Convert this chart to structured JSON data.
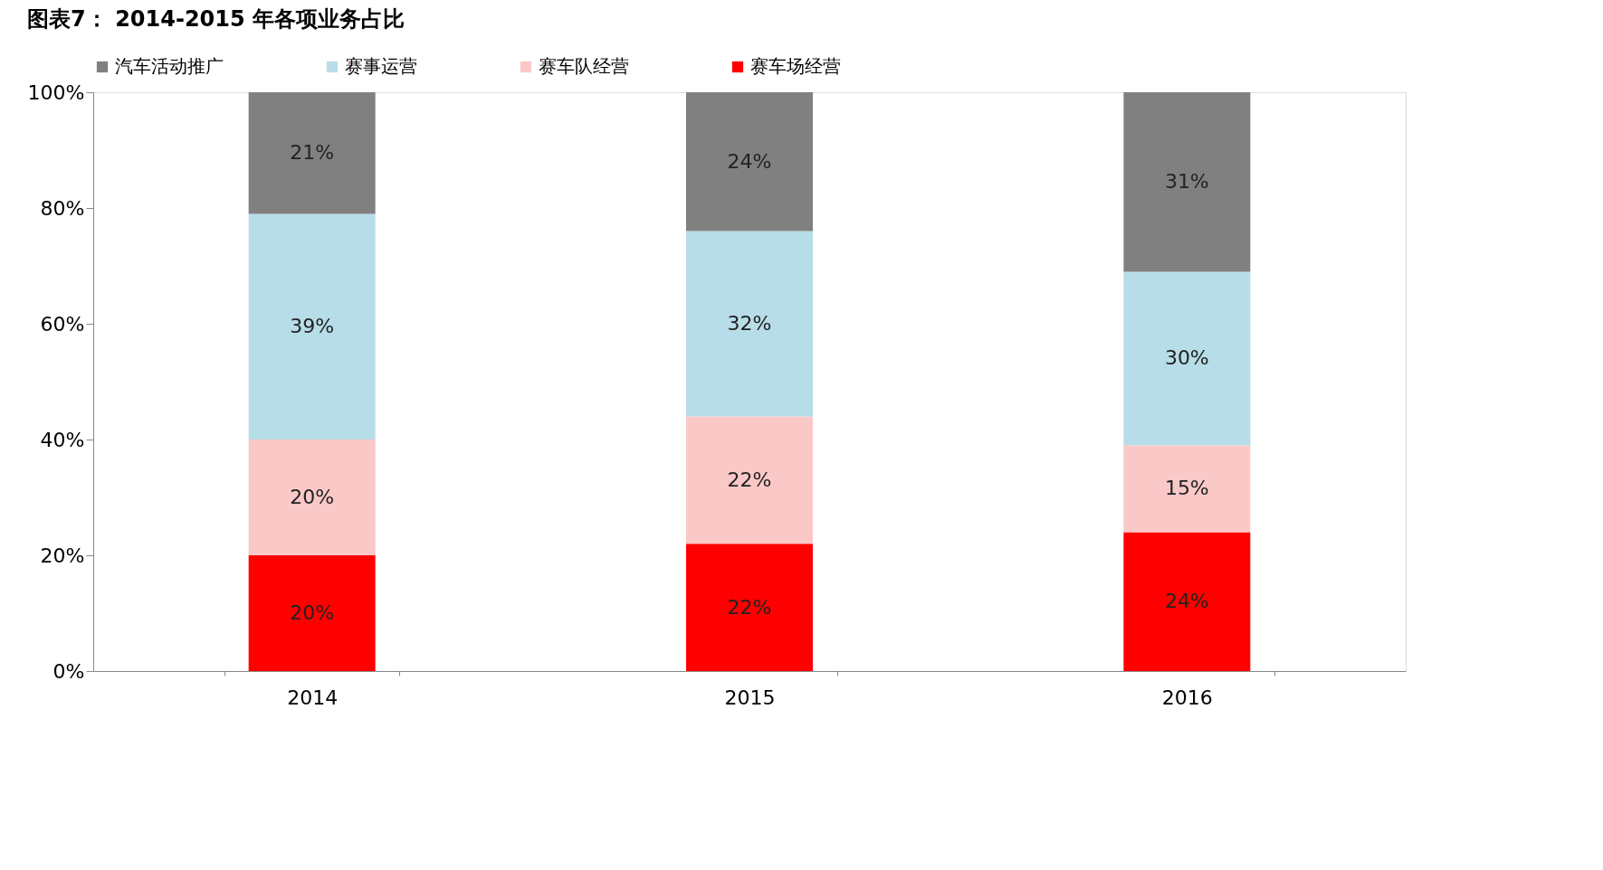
{
  "chart_data": {
    "type": "bar",
    "title": "图表7：  2014-2015 年各项业务占比",
    "categories": [
      "2014",
      "2015",
      "2016"
    ],
    "stacked": true,
    "series": [
      {
        "name": "赛车场经营",
        "color": "#ff0000",
        "values": [
          20,
          22,
          24
        ],
        "value_labels": [
          "20%",
          "22%",
          "24%"
        ]
      },
      {
        "name": "赛车队经营",
        "color": "#fbc8c8",
        "values": [
          20,
          22,
          15
        ],
        "value_labels": [
          "20%",
          "22%",
          "15%"
        ]
      },
      {
        "name": "赛事运营",
        "color": "#b7dde8",
        "values": [
          39,
          32,
          30
        ],
        "value_labels": [
          "39%",
          "32%",
          "30%"
        ]
      },
      {
        "name": "汽车活动推广",
        "color": "#808080",
        "values": [
          21,
          24,
          31
        ],
        "value_labels": [
          "21%",
          "24%",
          "31%"
        ]
      }
    ],
    "ylim": [
      0,
      100
    ],
    "yticks": [
      {
        "value": 0,
        "label": "0%"
      },
      {
        "value": 20,
        "label": "20%"
      },
      {
        "value": 40,
        "label": "40%"
      },
      {
        "value": 60,
        "label": "60%"
      },
      {
        "value": 80,
        "label": "80%"
      },
      {
        "value": 100,
        "label": "100%"
      }
    ],
    "grid": false,
    "legend": "top"
  }
}
